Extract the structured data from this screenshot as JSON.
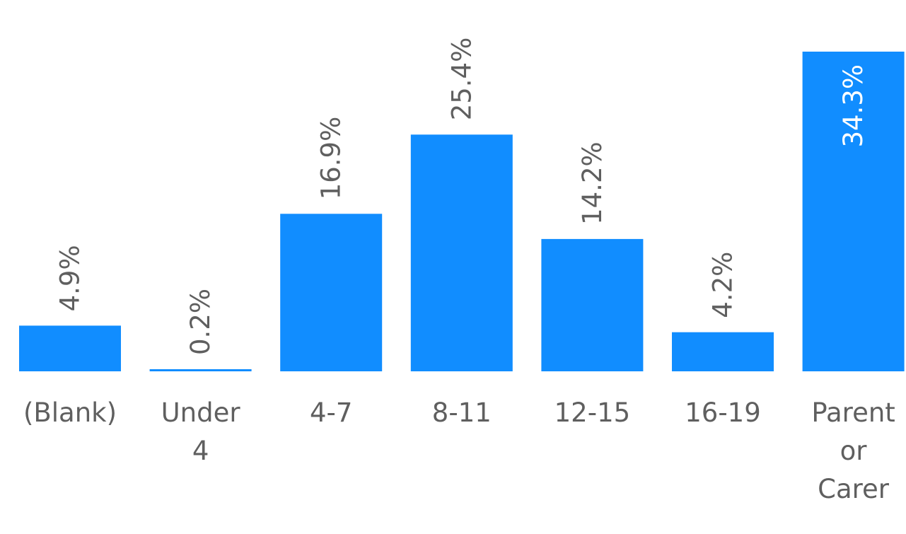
{
  "chart_data": {
    "type": "bar",
    "title": "",
    "xlabel": "",
    "ylabel": "",
    "categories": [
      [
        "(Blank)"
      ],
      [
        "Under",
        "4"
      ],
      [
        "4-7"
      ],
      [
        "8-11"
      ],
      [
        "12-15"
      ],
      [
        "16-19"
      ],
      [
        "Parent",
        "or",
        "Carer"
      ]
    ],
    "values": [
      4.9,
      0.2,
      16.9,
      25.4,
      14.2,
      4.2,
      34.3
    ],
    "value_labels": [
      "4.9%",
      "0.2%",
      "16.9%",
      "25.4%",
      "14.2%",
      "4.2%",
      "34.3%"
    ],
    "unit": "%",
    "ylim": [
      0,
      34.3
    ],
    "grid": false,
    "legend": "none",
    "colors": {
      "bar": "#118dff",
      "label": "#5f5f5f",
      "label_inside": "#ffffff"
    }
  }
}
